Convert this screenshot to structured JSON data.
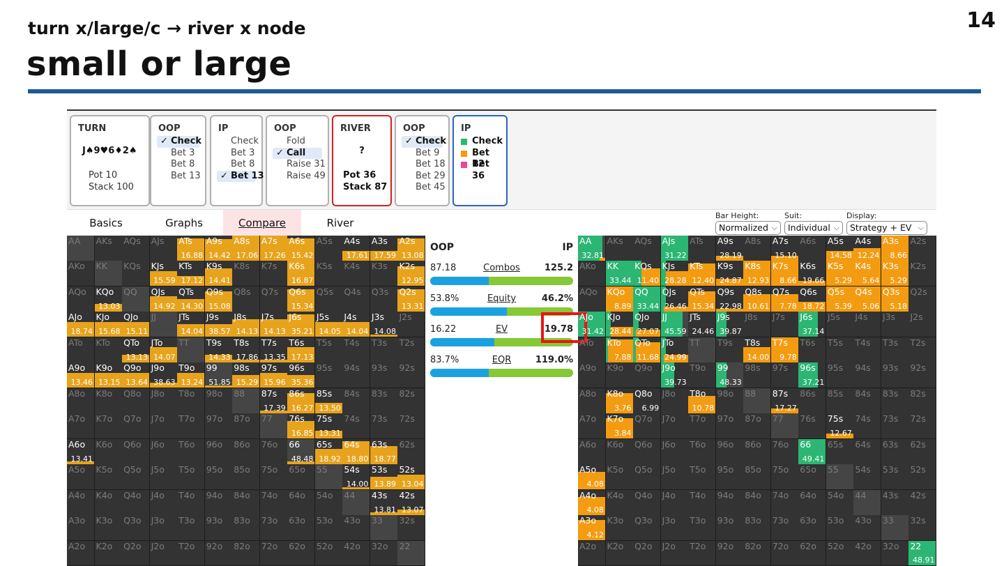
{
  "slide": {
    "number": "14",
    "subtitle": "turn x/large/c → river x node",
    "title": "small or large"
  },
  "nodes": [
    {
      "title": "TURN",
      "board": "J♠9♥6♦2♠",
      "pot": "Pot 10",
      "stack": "Stack 100"
    },
    {
      "title": "OOP",
      "options": [
        "Check",
        "Bet 3",
        "Bet 8",
        "Bet 13"
      ],
      "selected": 0
    },
    {
      "title": "IP",
      "options": [
        "Check",
        "Bet 3",
        "Bet 8",
        "Bet 13"
      ],
      "selected": 3
    },
    {
      "title": "OOP",
      "options": [
        "Fold",
        "Call",
        "Raise 31",
        "Raise 49"
      ],
      "selected": 1
    },
    {
      "title": "RIVER",
      "board": "?",
      "pot": "Pot 36",
      "stack": "Stack 87"
    },
    {
      "title": "OOP",
      "options": [
        "Check",
        "Bet 9",
        "Bet 18",
        "Bet 29",
        "Bet 45"
      ],
      "selected": 0
    },
    {
      "title": "IP",
      "legend": [
        {
          "label": "Check",
          "color": "#2bb673"
        },
        {
          "label": "Bet 12",
          "color": "#f39c12"
        },
        {
          "label": "Bet 36",
          "color": "#e8479a"
        }
      ]
    }
  ],
  "tabs": [
    "Basics",
    "Graphs",
    "Compare",
    "River"
  ],
  "active_tab": 2,
  "controls": {
    "bar_height": {
      "label": "Bar Height:",
      "value": "Normalized"
    },
    "suit": {
      "label": "Suit:",
      "value": "Individual"
    },
    "display": {
      "label": "Display:",
      "value": "Strategy + EV"
    }
  },
  "compare": {
    "oop_label": "OOP",
    "ip_label": "IP",
    "stats": [
      {
        "name": "Combos",
        "oop": "87.18",
        "ip": "125.2",
        "oop_share": 0.41
      },
      {
        "name": "Equity",
        "oop": "53.8%",
        "ip": "46.2%",
        "oop_share": 0.538
      },
      {
        "name": "EV",
        "oop": "16.22",
        "ip": "19.78",
        "oop_share": 0.45
      },
      {
        "name": "EQR",
        "oop": "83.7%",
        "ip": "119.0%",
        "oop_share": 0.41
      }
    ]
  },
  "colors": {
    "check": "#2bb673",
    "bet_small": "#f39c12",
    "bet_large": "#e8479a",
    "oop_bar": "#e8a31c",
    "accent_rule": "#1a5a99"
  },
  "ranks": [
    "A",
    "K",
    "Q",
    "J",
    "T",
    "9",
    "8",
    "7",
    "6",
    "5",
    "4",
    "3",
    "2"
  ],
  "oop_cells": {
    "ATs": {
      "ev": "16.88",
      "f": 0.9
    },
    "A9s": {
      "ev": "14.42",
      "f": 0.85
    },
    "A8s": {
      "ev": "17.06",
      "f": 1
    },
    "A7s": {
      "ev": "17.26",
      "f": 1
    },
    "A6s": {
      "ev": "15.42",
      "f": 0.9
    },
    "A4s": {
      "ev": "17.61",
      "f": 0.4
    },
    "A3s": {
      "ev": "17.59",
      "f": 0.4
    },
    "A2s": {
      "ev": "13.08",
      "f": 0.9
    },
    "KJs": {
      "ev": "15.59",
      "f": 0.6
    },
    "KTs": {
      "ev": "17.12",
      "f": 0.4
    },
    "K9s": {
      "ev": "14.41",
      "f": 0.7
    },
    "K6s": {
      "ev": "16.87",
      "f": 1
    },
    "K2s": {
      "ev": "12.95",
      "f": 0.8
    },
    "KQo": {
      "ev": "13.03",
      "f": 0.3
    },
    "QJs": {
      "ev": "14.92",
      "f": 0.6
    },
    "QTs": {
      "ev": "14.30",
      "f": 0.5
    },
    "Q9s": {
      "ev": "15.08",
      "f": 0.8
    },
    "Q6s": {
      "ev": "15.34",
      "f": 0.9
    },
    "Q2s": {
      "ev": "13.31",
      "f": 0.9
    },
    "AJo": {
      "ev": "18.74",
      "f": 0.6
    },
    "KJo": {
      "ev": "15.68",
      "f": 0.6
    },
    "QJo": {
      "ev": "15.11",
      "f": 0.6
    },
    "JTs": {
      "ev": "14.04",
      "f": 0.5
    },
    "J9s": {
      "ev": "38.57",
      "f": 0.5
    },
    "J8s": {
      "ev": "14.13",
      "f": 0.7
    },
    "J7s": {
      "ev": "14.13",
      "f": 0.7
    },
    "J6s": {
      "ev": "35.21",
      "f": 0.9
    },
    "J5s": {
      "ev": "14.05",
      "f": 0.6
    },
    "J4s": {
      "ev": "14.04",
      "f": 0.6
    },
    "J3s": {
      "ev": "14.08",
      "f": 0.1
    },
    "QTo": {
      "ev": "13.13",
      "f": 0.3
    },
    "JTo": {
      "ev": "14.07",
      "f": 0.6
    },
    "T9s": {
      "ev": "14.33",
      "f": 0.3
    },
    "T8s": {
      "ev": "17.86",
      "f": 0.1
    },
    "T7s": {
      "ev": "13.35",
      "f": 0.1
    },
    "T6s": {
      "ev": "17.13",
      "f": 0.6
    },
    "A9o": {
      "ev": "13.46",
      "f": 0.6
    },
    "K9o": {
      "ev": "13.15",
      "f": 0.6
    },
    "Q9o": {
      "ev": "13.64",
      "f": 0.6
    },
    "J9o": {
      "ev": "38.63",
      "f": 0.2
    },
    "T9o": {
      "ev": "13.24",
      "f": 0.6
    },
    "99": {
      "ev": "51.85",
      "f": 0.1
    },
    "98s": {
      "ev": "15.29",
      "f": 0.5
    },
    "97s": {
      "ev": "15.96",
      "f": 0.6
    },
    "96s": {
      "ev": "35.36",
      "f": 0.5
    },
    "87s": {
      "ev": "17.39",
      "f": 0.1
    },
    "86s": {
      "ev": "16.27",
      "f": 0.8
    },
    "85s": {
      "ev": "13.50",
      "f": 0.4
    },
    "76s": {
      "ev": "16.85",
      "f": 0.7
    },
    "75s": {
      "ev": "13.31",
      "f": 0.3
    },
    "A6o": {
      "ev": "13.41",
      "f": 0.1
    },
    "66": {
      "ev": "48.48",
      "f": 0.1
    },
    "65s": {
      "ev": "18.92",
      "f": 0.6
    },
    "64s": {
      "ev": "18.80",
      "f": 0.9
    },
    "63s": {
      "ev": "18.77",
      "f": 0.7
    },
    "54s": {
      "ev": "14.00",
      "f": 0.1
    },
    "53s": {
      "ev": "13.89",
      "f": 0.5
    },
    "52s": {
      "ev": "13.04",
      "f": 0.6
    },
    "43s": {
      "ev": "13.81",
      "f": 0.1
    },
    "42s": {
      "ev": "13.07",
      "f": 0.2
    }
  },
  "ip_cells": {
    "AA": {
      "ev": "32.81",
      "g": 0.9,
      "o": 0.1
    },
    "AJs": {
      "ev": "31.22",
      "g": 1,
      "o": 0
    },
    "A9s": {
      "ev": "28.19",
      "g": 0,
      "o": 0.2
    },
    "A7s": {
      "ev": "15.10",
      "g": 0,
      "o": 0.2
    },
    "A5s": {
      "ev": "14.58",
      "g": 0,
      "o": 0.4
    },
    "A4s": {
      "ev": "12.24",
      "g": 0,
      "o": 0.5
    },
    "A3s": {
      "ev": "8.66",
      "g": 0,
      "o": 1
    },
    "KK": {
      "ev": "33.44",
      "g": 1,
      "o": 0
    },
    "KQs": {
      "ev": "11.40",
      "g": 0.3,
      "o": 0.7
    },
    "KJs": {
      "ev": "28.28",
      "g": 0.2,
      "o": 0.6
    },
    "KTs": {
      "ev": "12.40",
      "g": 0,
      "o": 0.9
    },
    "K9s": {
      "ev": "24.87",
      "g": 0,
      "o": 0.3
    },
    "K8s": {
      "ev": "12.93",
      "g": 0,
      "o": 1
    },
    "K7s": {
      "ev": "8.66",
      "g": 0,
      "o": 1
    },
    "K6s": {
      "ev": "19.66",
      "g": 0,
      "o": 0.2
    },
    "K5s": {
      "ev": "5.29",
      "g": 0,
      "o": 1
    },
    "K4s": {
      "ev": "5.64",
      "g": 0,
      "o": 1
    },
    "K3s": {
      "ev": "5.29",
      "g": 0,
      "o": 1
    },
    "KQo": {
      "ev": "8.89",
      "g": 0,
      "o": 1
    },
    "QQ": {
      "ev": "33.44",
      "g": 1,
      "o": 0
    },
    "QJs": {
      "ev": "26.46",
      "g": 0.1,
      "o": 0.2
    },
    "QTs": {
      "ev": "15.34",
      "g": 0,
      "o": 0.8
    },
    "Q9s": {
      "ev": "22.98",
      "g": 0,
      "o": 0.1
    },
    "Q8s": {
      "ev": "10.61",
      "g": 0,
      "o": 0.7
    },
    "Q7s": {
      "ev": "7.78",
      "g": 0,
      "o": 0.7
    },
    "Q6s": {
      "ev": "18.72",
      "g": 0,
      "o": 0.4
    },
    "Q5s": {
      "ev": "5.39",
      "g": 0,
      "o": 1
    },
    "Q4s": {
      "ev": "5.06",
      "g": 0,
      "o": 1
    },
    "Q3s": {
      "ev": "5.18",
      "g": 0,
      "o": 1
    },
    "AJo": {
      "ev": "31.42",
      "g": 1,
      "o": 0
    },
    "KJo": {
      "ev": "28.44",
      "g": 0.2,
      "o": 0.4
    },
    "QJo": {
      "ev": "27.07",
      "g": 0.1,
      "o": 0.3
    },
    "JJ": {
      "ev": "45.59",
      "g": 0.8,
      "o": 0
    },
    "JTs": {
      "ev": "24.46",
      "g": 0,
      "o": 0
    },
    "J9s": {
      "ev": "39.87",
      "g": 0.4,
      "o": 0
    },
    "J6s": {
      "ev": "37.14",
      "g": 0.7,
      "o": 0
    },
    "KTo": {
      "ev": "7.88",
      "g": 0.1,
      "o": 0.9
    },
    "QTo": {
      "ev": "11.68",
      "g": 0.1,
      "o": 0.8
    },
    "JTo": {
      "ev": "24.99",
      "g": 0.1,
      "o": 0.3
    },
    "T8s": {
      "ev": "14.00",
      "g": 0,
      "o": 0.6
    },
    "T7s": {
      "ev": "9.78",
      "g": 0,
      "o": 1
    },
    "J9o": {
      "ev": "39.73",
      "g": 0.5,
      "o": 0
    },
    "99": {
      "ev": "48.33",
      "g": 0.4,
      "o": 0
    },
    "96s": {
      "ev": "37.21",
      "g": 0.7,
      "o": 0
    },
    "K8o": {
      "ev": "3.76",
      "g": 0,
      "o": 0.8
    },
    "Q8o": {
      "ev": "6.99",
      "g": 0,
      "o": 0
    },
    "T8o": {
      "ev": "10.78",
      "g": 0,
      "o": 0.7
    },
    "87s": {
      "ev": "17.27",
      "g": 0,
      "o": 0.2
    },
    "K7o": {
      "ev": "3.84",
      "g": 0,
      "o": 0.8
    },
    "75s": {
      "ev": "12.67",
      "g": 0,
      "o": 0.2
    },
    "66": {
      "ev": "49.41",
      "g": 1,
      "o": 0
    },
    "A5o": {
      "ev": "4.08",
      "g": 0,
      "o": 0.7
    },
    "A4o": {
      "ev": "4.08",
      "g": 0,
      "o": 0.7
    },
    "A3o": {
      "ev": "4.12",
      "g": 0,
      "o": 0.8
    },
    "22": {
      "ev": "48.91",
      "g": 1,
      "o": 0
    }
  }
}
